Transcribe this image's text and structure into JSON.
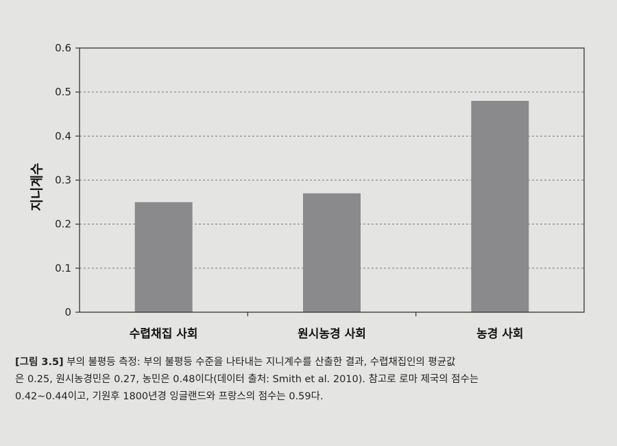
{
  "chart_data": {
    "type": "bar",
    "categories": [
      "수렵채집 사회",
      "원시농경 사회",
      "농경 사회"
    ],
    "values": [
      0.25,
      0.27,
      0.48
    ],
    "ylabel": "지니계수",
    "xlabel": "",
    "ylim": [
      0,
      0.6
    ],
    "yticks": [
      "0",
      "0.1",
      "0.2",
      "0.3",
      "0.4",
      "0.5",
      "0.6"
    ],
    "grid": "horizontal dashed",
    "bar_color": "#8a8a8c"
  },
  "caption": {
    "label": "[그림 3.5]",
    "line1": " 부의 불평등 측정: 부의 불평등 수준을 나타내는 지니계수를 산출한 결과, 수렵채집인의 평균값",
    "line2": "은 0.25, 원시농경민은 0.27, 농민은 0.48이다(데이터 출처: Smith et al. 2010). 참고로 로마 제국의 점수는",
    "line3": "0.42∼0.44이고, 기원후 1800년경 잉글랜드와 프랑스의 점수는 0.59다."
  }
}
